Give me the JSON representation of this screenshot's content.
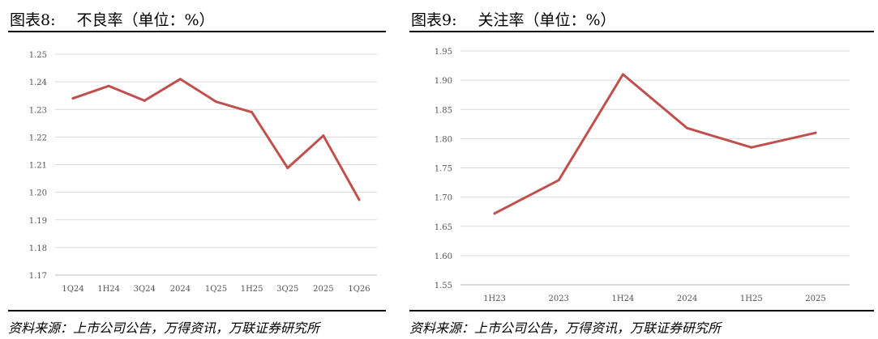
{
  "left": {
    "fig_label": "图表8:",
    "title": "不良率（单位：%）",
    "source": "资料来源：上市公司公告，万得资讯，万联证券研究所"
  },
  "right": {
    "fig_label": "图表9:",
    "title": "关注率（单位：%）",
    "source": "资料来源：上市公司公告，万得资讯，万联证券研究所"
  },
  "colors": {
    "line": "#c0504d",
    "grid": "#d9d9d9",
    "axis": "#bfbfbf"
  },
  "chart_data": [
    {
      "type": "line",
      "title": "不良率（单位：%）",
      "categories": [
        "1Q24",
        "1H24",
        "3Q24",
        "2024",
        "1Q25",
        "1H25",
        "3Q25",
        "2025",
        "1Q26"
      ],
      "values": [
        1.234,
        1.2385,
        1.2332,
        1.241,
        1.2328,
        1.229,
        1.2088,
        1.2205,
        1.1973
      ],
      "yticks": [
        "1.25",
        "1.24",
        "1.23",
        "1.22",
        "1.21",
        "1.20",
        "1.19",
        "1.18",
        "1.17"
      ],
      "ylim": [
        1.17,
        1.25
      ],
      "grid": true,
      "legend": "none"
    },
    {
      "type": "line",
      "title": "关注率（单位：%）",
      "categories": [
        "1H23",
        "2023",
        "1H24",
        "2024",
        "1H25",
        "2025"
      ],
      "values": [
        1.672,
        1.729,
        1.91,
        1.818,
        1.785,
        1.81
      ],
      "yticks": [
        "1.95",
        "1.90",
        "1.85",
        "1.80",
        "1.75",
        "1.70",
        "1.65",
        "1.60",
        "1.55"
      ],
      "ylim": [
        1.55,
        1.95
      ],
      "grid": true,
      "legend": "none"
    }
  ]
}
